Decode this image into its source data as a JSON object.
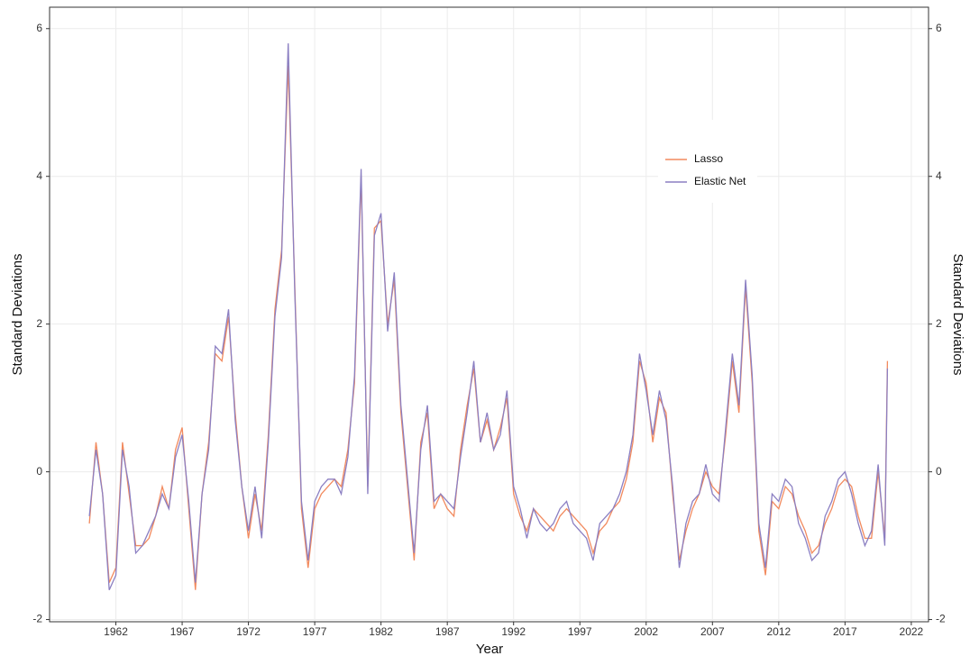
{
  "chart_data": {
    "type": "line",
    "x_label": "Year",
    "y_label": "Standard Deviations",
    "y2_label": "Standard Deviations",
    "x": [
      1960.0,
      1960.5,
      1961.0,
      1961.5,
      1962.0,
      1962.5,
      1963.0,
      1963.5,
      1964.0,
      1964.5,
      1965.0,
      1965.5,
      1966.0,
      1966.5,
      1967.0,
      1967.5,
      1968.0,
      1968.5,
      1969.0,
      1969.5,
      1970.0,
      1970.5,
      1971.0,
      1971.5,
      1972.0,
      1972.5,
      1973.0,
      1973.5,
      1974.0,
      1974.5,
      1975.0,
      1975.5,
      1976.0,
      1976.5,
      1977.0,
      1977.5,
      1978.0,
      1978.5,
      1979.0,
      1979.5,
      1980.0,
      1980.5,
      1981.0,
      1981.5,
      1982.0,
      1982.5,
      1983.0,
      1983.5,
      1984.0,
      1984.5,
      1985.0,
      1985.5,
      1986.0,
      1986.5,
      1987.0,
      1987.5,
      1988.0,
      1988.5,
      1989.0,
      1989.5,
      1990.0,
      1990.5,
      1991.0,
      1991.5,
      1992.0,
      1992.5,
      1993.0,
      1993.5,
      1994.0,
      1994.5,
      1995.0,
      1995.5,
      1996.0,
      1996.5,
      1997.0,
      1997.5,
      1998.0,
      1998.5,
      1999.0,
      1999.5,
      2000.0,
      2000.5,
      2001.0,
      2001.5,
      2002.0,
      2002.5,
      2003.0,
      2003.5,
      2004.0,
      2004.5,
      2005.0,
      2005.5,
      2006.0,
      2006.5,
      2007.0,
      2007.5,
      2008.0,
      2008.5,
      2009.0,
      2009.5,
      2010.0,
      2010.5,
      2011.0,
      2011.5,
      2012.0,
      2012.5,
      2013.0,
      2013.5,
      2014.0,
      2014.5,
      2015.0,
      2015.5,
      2016.0,
      2016.5,
      2017.0,
      2017.5,
      2018.0,
      2018.5,
      2019.0,
      2019.5,
      2020.0,
      2020.2
    ],
    "series": [
      {
        "name": "Lasso",
        "color": "#f28a5e",
        "values": [
          -0.7,
          0.4,
          -0.3,
          -1.5,
          -1.3,
          0.4,
          -0.3,
          -1.0,
          -1.0,
          -0.9,
          -0.6,
          -0.2,
          -0.5,
          0.3,
          0.6,
          -0.5,
          -1.6,
          -0.3,
          0.4,
          1.6,
          1.5,
          2.1,
          0.8,
          -0.2,
          -0.9,
          -0.3,
          -0.8,
          0.5,
          2.2,
          3.0,
          5.5,
          2.5,
          -0.5,
          -1.3,
          -0.5,
          -0.3,
          -0.2,
          -0.1,
          -0.2,
          0.3,
          1.2,
          4.0,
          -0.2,
          3.3,
          3.4,
          2.0,
          2.6,
          0.8,
          -0.2,
          -1.2,
          0.4,
          0.8,
          -0.5,
          -0.3,
          -0.5,
          -0.6,
          0.3,
          0.9,
          1.4,
          0.4,
          0.7,
          0.3,
          0.6,
          1.0,
          -0.3,
          -0.6,
          -0.8,
          -0.5,
          -0.6,
          -0.7,
          -0.8,
          -0.6,
          -0.5,
          -0.6,
          -0.7,
          -0.8,
          -1.1,
          -0.8,
          -0.7,
          -0.5,
          -0.4,
          -0.1,
          0.4,
          1.5,
          1.2,
          0.4,
          1.0,
          0.8,
          -0.3,
          -1.2,
          -0.8,
          -0.5,
          -0.3,
          0.0,
          -0.2,
          -0.3,
          0.5,
          1.5,
          0.8,
          2.5,
          1.2,
          -0.8,
          -1.4,
          -0.4,
          -0.5,
          -0.2,
          -0.3,
          -0.6,
          -0.8,
          -1.1,
          -1.0,
          -0.7,
          -0.5,
          -0.2,
          -0.1,
          -0.2,
          -0.6,
          -0.9,
          -0.9,
          0.0,
          -0.9,
          1.5
        ]
      },
      {
        "name": "Elastic Net",
        "color": "#8b7fc2",
        "values": [
          -0.6,
          0.3,
          -0.3,
          -1.6,
          -1.4,
          0.3,
          -0.2,
          -1.1,
          -1.0,
          -0.8,
          -0.6,
          -0.3,
          -0.5,
          0.2,
          0.5,
          -0.4,
          -1.5,
          -0.3,
          0.3,
          1.7,
          1.6,
          2.2,
          0.7,
          -0.2,
          -0.8,
          -0.2,
          -0.9,
          0.4,
          2.1,
          2.9,
          5.8,
          2.4,
          -0.4,
          -1.2,
          -0.4,
          -0.2,
          -0.1,
          -0.1,
          -0.3,
          0.2,
          1.3,
          4.1,
          -0.3,
          3.2,
          3.5,
          1.9,
          2.7,
          0.9,
          -0.1,
          -1.1,
          0.3,
          0.9,
          -0.4,
          -0.3,
          -0.4,
          -0.5,
          0.2,
          0.8,
          1.5,
          0.4,
          0.8,
          0.3,
          0.5,
          1.1,
          -0.2,
          -0.5,
          -0.9,
          -0.5,
          -0.7,
          -0.8,
          -0.7,
          -0.5,
          -0.4,
          -0.7,
          -0.8,
          -0.9,
          -1.2,
          -0.7,
          -0.6,
          -0.5,
          -0.3,
          0.0,
          0.5,
          1.6,
          1.1,
          0.5,
          1.1,
          0.7,
          -0.2,
          -1.3,
          -0.7,
          -0.4,
          -0.3,
          0.1,
          -0.3,
          -0.4,
          0.6,
          1.6,
          0.9,
          2.6,
          1.3,
          -0.7,
          -1.3,
          -0.3,
          -0.4,
          -0.1,
          -0.2,
          -0.7,
          -0.9,
          -1.2,
          -1.1,
          -0.6,
          -0.4,
          -0.1,
          0.0,
          -0.3,
          -0.7,
          -1.0,
          -0.8,
          0.1,
          -1.0,
          1.4
        ]
      }
    ],
    "xlim": [
      1957.0,
      2023.3
    ],
    "xticks": [
      1962,
      1967,
      1972,
      1977,
      1982,
      1987,
      1992,
      1997,
      2002,
      2007,
      2012,
      2017,
      2022
    ],
    "ylim": [
      -2.03,
      6.29
    ],
    "yticks": [
      -2,
      0,
      2,
      4,
      6
    ],
    "y2lim": [
      -2.03,
      6.29
    ],
    "y2ticks": [
      -2,
      0,
      2,
      4,
      6
    ],
    "grid": true,
    "legend": "top-right"
  }
}
